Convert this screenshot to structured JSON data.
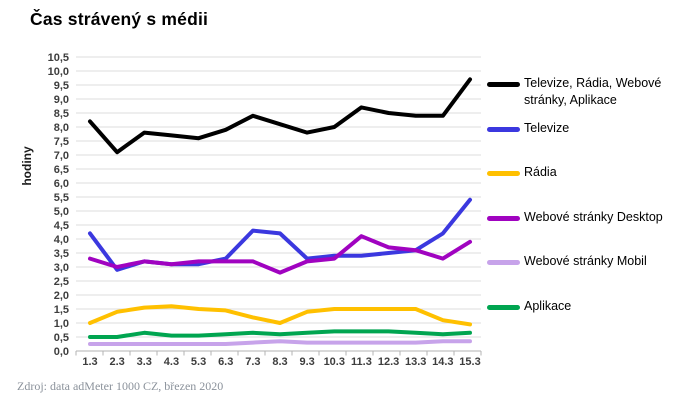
{
  "title": "Čas strávený s médii",
  "source": "Zdroj: data adMeter 1000 CZ, březen 2020",
  "colors": {
    "background": "#ffffff",
    "gridline": "#dcdcdc",
    "axis": "#b3b3b3",
    "tick_label": "#3d3d3d",
    "total": "#000000",
    "televize": "#3b38df",
    "radia": "#ffc000",
    "web_desktop": "#a003c0",
    "web_mobil": "#c7a3ea",
    "aplikace": "#00a550"
  },
  "legend": {
    "items": [
      {
        "label": "Televize, Rádia, Webové stránky, Aplikace",
        "color": "#000000"
      },
      {
        "label": "Televize",
        "color": "#3b38df"
      },
      {
        "label": "Rádia",
        "color": "#ffc000"
      },
      {
        "label": "Webové stránky Desktop",
        "color": "#a003c0"
      },
      {
        "label": "Webové stránky Mobil",
        "color": "#c7a3ea"
      },
      {
        "label": "Aplikace",
        "color": "#00a550"
      }
    ]
  },
  "chart_data": {
    "type": "line",
    "title": "Čas strávený s médii",
    "xlabel": "",
    "ylabel": "hodiny",
    "ylim": [
      0,
      10.5
    ],
    "y_tick_step": 0.5,
    "grid": true,
    "legend_position": "right",
    "y_ticks": [
      "0,0",
      "0,5",
      "1,0",
      "1,5",
      "2,0",
      "2,5",
      "3,0",
      "3,5",
      "4,0",
      "4,5",
      "5,0",
      "5,5",
      "6,0",
      "6,5",
      "7,0",
      "7,5",
      "8,0",
      "8,5",
      "9,0",
      "9,5",
      "10,0",
      "10,5"
    ],
    "categories": [
      "1.3",
      "2.3",
      "3.3",
      "4.3",
      "5.3",
      "6.3",
      "7.3",
      "8.3",
      "9.3",
      "10.3",
      "11.3",
      "12.3",
      "13.3",
      "14.3",
      "15.3"
    ],
    "series": [
      {
        "name": "Televize, Rádia, Webové stránky, Aplikace",
        "color": "#000000",
        "values": [
          8.2,
          7.1,
          7.8,
          7.7,
          7.6,
          7.9,
          8.4,
          8.1,
          7.8,
          8.0,
          8.7,
          8.5,
          8.4,
          8.4,
          9.7
        ]
      },
      {
        "name": "Televize",
        "color": "#3b38df",
        "values": [
          4.2,
          2.9,
          3.2,
          3.1,
          3.1,
          3.3,
          4.3,
          4.2,
          3.3,
          3.4,
          3.4,
          3.5,
          3.6,
          4.2,
          5.4
        ]
      },
      {
        "name": "Rádia",
        "color": "#ffc000",
        "values": [
          1.0,
          1.4,
          1.55,
          1.6,
          1.5,
          1.45,
          1.2,
          1.0,
          1.4,
          1.5,
          1.5,
          1.5,
          1.5,
          1.1,
          0.95
        ]
      },
      {
        "name": "Webové stránky Desktop",
        "color": "#a003c0",
        "values": [
          3.3,
          3.0,
          3.2,
          3.1,
          3.2,
          3.2,
          3.2,
          2.8,
          3.2,
          3.3,
          4.1,
          3.7,
          3.6,
          3.3,
          3.9
        ]
      },
      {
        "name": "Webové stránky Mobil",
        "color": "#c7a3ea",
        "values": [
          0.25,
          0.25,
          0.25,
          0.25,
          0.25,
          0.25,
          0.3,
          0.35,
          0.3,
          0.3,
          0.3,
          0.3,
          0.3,
          0.35,
          0.35
        ]
      },
      {
        "name": "Aplikace",
        "color": "#00a550",
        "values": [
          0.5,
          0.5,
          0.65,
          0.55,
          0.55,
          0.6,
          0.65,
          0.6,
          0.65,
          0.7,
          0.7,
          0.7,
          0.65,
          0.6,
          0.65
        ]
      }
    ]
  }
}
